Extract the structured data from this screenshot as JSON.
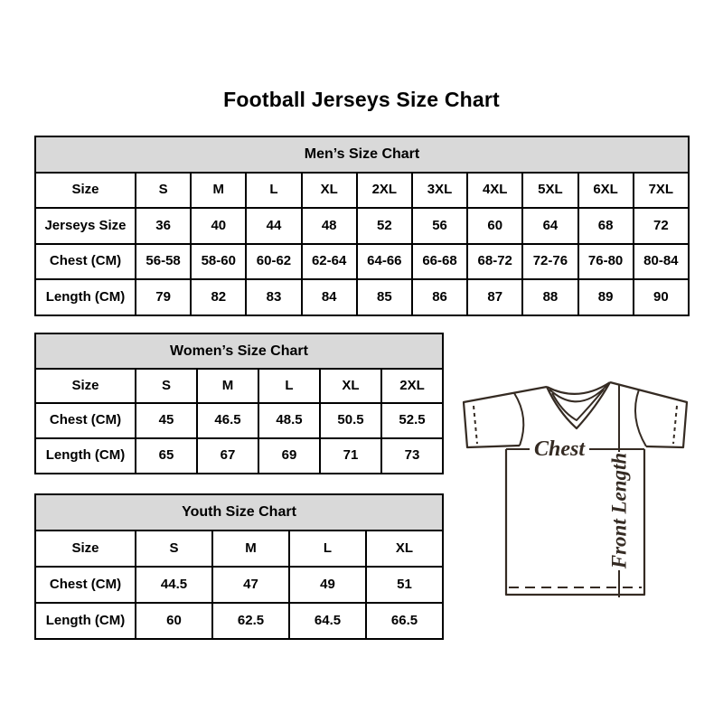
{
  "page": {
    "title": "Football Jerseys Size Chart"
  },
  "tables": {
    "mens": {
      "title": "Men’s Size Chart",
      "rows": [
        [
          "Size",
          "S",
          "M",
          "L",
          "XL",
          "2XL",
          "3XL",
          "4XL",
          "5XL",
          "6XL",
          "7XL"
        ],
        [
          "Jerseys Size",
          "36",
          "40",
          "44",
          "48",
          "52",
          "56",
          "60",
          "64",
          "68",
          "72"
        ],
        [
          "Chest (CM)",
          "56-58",
          "58-60",
          "60-62",
          "62-64",
          "64-66",
          "66-68",
          "68-72",
          "72-76",
          "76-80",
          "80-84"
        ],
        [
          "Length (CM)",
          "79",
          "82",
          "83",
          "84",
          "85",
          "86",
          "87",
          "88",
          "89",
          "90"
        ]
      ]
    },
    "womens": {
      "title": "Women’s Size Chart",
      "rows": [
        [
          "Size",
          "S",
          "M",
          "L",
          "XL",
          "2XL"
        ],
        [
          "Chest (CM)",
          "45",
          "46.5",
          "48.5",
          "50.5",
          "52.5"
        ],
        [
          "Length (CM)",
          "65",
          "67",
          "69",
          "71",
          "73"
        ]
      ]
    },
    "youth": {
      "title": "Youth Size Chart",
      "rows": [
        [
          "Size",
          "S",
          "M",
          "L",
          "XL"
        ],
        [
          "Chest (CM)",
          "44.5",
          "47",
          "49",
          "51"
        ],
        [
          "Length (CM)",
          "60",
          "62.5",
          "64.5",
          "66.5"
        ]
      ]
    }
  },
  "diagram": {
    "chest_label": "Chest",
    "front_length_label": "Front Length"
  },
  "colors": {
    "table_header_bg": "#d9d9d9",
    "table_border": "#000000",
    "diagram_line": "#352b23"
  }
}
